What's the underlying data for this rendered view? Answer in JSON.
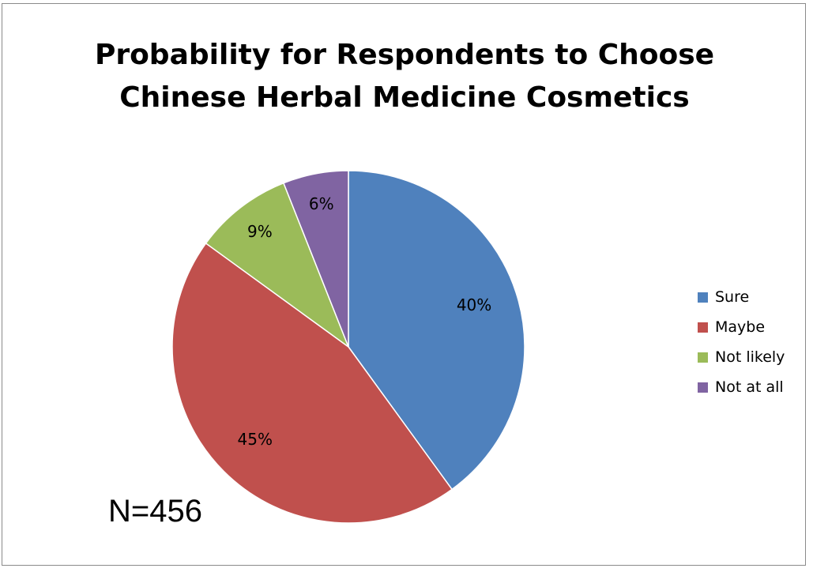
{
  "chart_data": {
    "type": "pie",
    "title": "Probability for Respondents to Choose Chinese Herbal Medicine Cosmetics",
    "title_lines": [
      "Probability for Respondents to Choose",
      "Chinese Herbal Medicine Cosmetics"
    ],
    "categories": [
      "Sure",
      "Maybe",
      "Not likely",
      "Not at all"
    ],
    "values": [
      40,
      45,
      9,
      6
    ],
    "labels": [
      "40%",
      "45%",
      "9%",
      "6%"
    ],
    "colors": [
      "#4f81bd",
      "#c0504d",
      "#9bbb59",
      "#8064a2"
    ],
    "legend_position": "right",
    "annotation": "N=456"
  }
}
